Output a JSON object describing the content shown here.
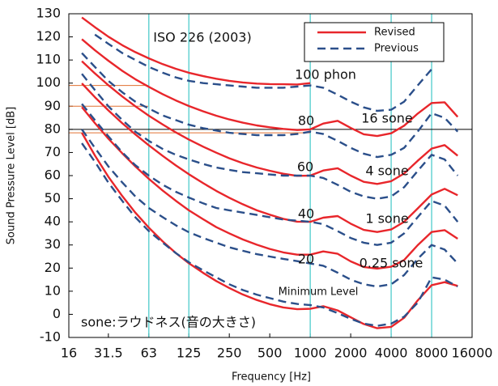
{
  "chart_data": {
    "type": "line",
    "title": "ISO 226 (2003)",
    "x_label": "Frequency [Hz]",
    "y_label": "Sound Pressure Level [dB]",
    "log_x": true,
    "xlim": [
      16,
      16000
    ],
    "xticks": [
      16,
      31.5,
      63,
      125,
      250,
      500,
      1000,
      2000,
      4000,
      8000,
      16000
    ],
    "ylim": [
      -10,
      130
    ],
    "yticks": [
      -10,
      0,
      10,
      20,
      30,
      40,
      50,
      60,
      70,
      80,
      90,
      100,
      110,
      120,
      130
    ],
    "vlines": [
      63,
      125,
      1000,
      4000,
      8000
    ],
    "vline_color": "#40c8c8",
    "hlines": [
      {
        "value": 99,
        "color": "#e07030"
      },
      {
        "value": 90,
        "color": "#e07030"
      },
      {
        "value": 78.5,
        "color": "#e07030"
      },
      {
        "value": 80,
        "color": "#000000"
      }
    ],
    "x": [
      20,
      25,
      31.5,
      40,
      50,
      63,
      80,
      100,
      125,
      160,
      200,
      250,
      315,
      400,
      500,
      630,
      800,
      1000,
      1250,
      1600,
      2000,
      2500,
      3150,
      4000,
      5000,
      6300,
      8000,
      10000,
      12500
    ],
    "series": [
      {
        "name": "Revised",
        "color": "#e8262b",
        "dashed": false,
        "curves": [
          [
            128.4,
            124.2,
            120.1,
            116.4,
            113.4,
            110.7,
            108.2,
            106.2,
            104.5,
            103.0,
            101.9,
            101.0,
            100.3,
            99.8,
            99.6,
            99.5,
            99.4,
            100.0,
            null,
            null,
            null,
            null,
            null,
            null,
            null,
            null,
            null,
            null,
            null
          ],
          [
            119.0,
            114.2,
            109.7,
            105.3,
            101.7,
            98.4,
            95.2,
            92.5,
            90.1,
            87.8,
            85.9,
            84.3,
            82.9,
            81.7,
            80.9,
            80.2,
            79.7,
            80.0,
            82.5,
            83.7,
            80.6,
            77.9,
            77.1,
            78.3,
            81.6,
            86.8,
            91.4,
            91.7,
            85.4
          ],
          [
            109.5,
            104.2,
            99.1,
            94.2,
            90.0,
            85.9,
            82.1,
            78.7,
            75.6,
            72.5,
            69.9,
            67.5,
            65.4,
            63.5,
            62.1,
            60.8,
            59.9,
            60.0,
            62.2,
            63.2,
            60.0,
            57.3,
            56.4,
            57.6,
            60.9,
            66.4,
            71.7,
            73.2,
            68.6
          ],
          [
            99.9,
            93.9,
            88.2,
            82.6,
            77.8,
            73.1,
            68.5,
            64.4,
            60.6,
            56.7,
            53.4,
            50.4,
            47.6,
            45.0,
            43.1,
            41.3,
            40.1,
            40.0,
            41.8,
            42.5,
            39.2,
            36.5,
            35.6,
            36.7,
            40.0,
            45.8,
            51.8,
            54.3,
            51.5
          ],
          [
            89.6,
            82.7,
            76.0,
            69.6,
            64.0,
            58.6,
            53.5,
            49.1,
            45.0,
            41.1,
            37.7,
            35.0,
            32.4,
            30.1,
            28.3,
            26.8,
            25.8,
            25.8,
            27.2,
            26.2,
            22.9,
            20.5,
            19.8,
            20.6,
            23.5,
            29.9,
            35.6,
            36.4,
            32.7
          ],
          [
            78.5,
            68.7,
            59.5,
            51.1,
            44.0,
            37.5,
            31.5,
            26.5,
            22.1,
            17.9,
            14.4,
            11.4,
            8.6,
            6.2,
            4.4,
            3.0,
            2.2,
            2.4,
            3.5,
            1.7,
            -1.3,
            -4.2,
            -6.0,
            -5.4,
            -1.5,
            6.0,
            12.6,
            13.9,
            12.3
          ]
        ]
      },
      {
        "name": "Previous",
        "color": "#2b4f8a",
        "dashed": true,
        "curves": [
          [
            null,
            121,
            117,
            113,
            110,
            107,
            104.5,
            102.5,
            101,
            100,
            99.5,
            99,
            98.5,
            98,
            98,
            98,
            98.5,
            99,
            98,
            95,
            92,
            89.5,
            88,
            88.5,
            92,
            99,
            106,
            null,
            null
          ],
          [
            113,
            107,
            101,
            96,
            92,
            89,
            86,
            84,
            82,
            80.5,
            79.5,
            78.5,
            78,
            77.5,
            77.5,
            77.5,
            78,
            79,
            78,
            75,
            72,
            69.5,
            68,
            69,
            72,
            79,
            87,
            85,
            79
          ],
          [
            104,
            97,
            90,
            84,
            79,
            75,
            71.5,
            69,
            67,
            65,
            63.5,
            62.5,
            61.5,
            61,
            60.5,
            60,
            60,
            60,
            59,
            56,
            53,
            51,
            50,
            51,
            55,
            62,
            69,
            67,
            60
          ],
          [
            91,
            84,
            77,
            70,
            64.5,
            60,
            56,
            53,
            50.5,
            48,
            46,
            45,
            44,
            43,
            42,
            41,
            40.5,
            40,
            39,
            36,
            33,
            31,
            30,
            31,
            35,
            42,
            49,
            47,
            40
          ],
          [
            80,
            72,
            64,
            57,
            51,
            46,
            42,
            38.5,
            35.5,
            33,
            31,
            29,
            27.5,
            26,
            25,
            24,
            23,
            22,
            21,
            18,
            15,
            13,
            12,
            13,
            17,
            24,
            30,
            28,
            22
          ],
          [
            74,
            66,
            57,
            49,
            42,
            36,
            31,
            26.5,
            22.5,
            19,
            16,
            13,
            10.5,
            8.5,
            7,
            5.5,
            4.5,
            4,
            3,
            0.5,
            -2,
            -4,
            -5,
            -4,
            -1,
            5,
            16,
            15,
            12
          ]
        ]
      }
    ],
    "annotations": [
      "100 phon",
      "80",
      "16 sone",
      "60",
      "4 sone",
      "40",
      "1 sone",
      "20",
      "0.25 sone",
      "Minimum Level",
      "sone:ラウドネス(音の大きさ)"
    ]
  }
}
